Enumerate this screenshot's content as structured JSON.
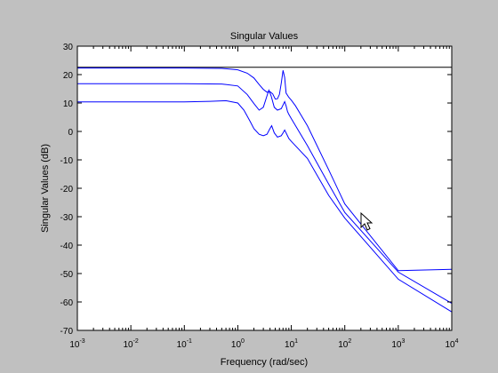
{
  "figure": {
    "background": "#c0c0c0",
    "axes_background": "#ffffff",
    "line_color": "#0000ff"
  },
  "chart_data": {
    "type": "line",
    "title": "Singular Values",
    "xlabel": "Frequency (rad/sec)",
    "ylabel": "Singular Values (dB)",
    "xscale": "log",
    "xlim": [
      0.001,
      10000
    ],
    "ylim": [
      -70,
      30
    ],
    "grid": false,
    "x_ticks": [
      {
        "value": 0.001,
        "base": "10",
        "exp": "-3"
      },
      {
        "value": 0.01,
        "base": "10",
        "exp": "-2"
      },
      {
        "value": 0.1,
        "base": "10",
        "exp": "-1"
      },
      {
        "value": 1,
        "base": "10",
        "exp": "0"
      },
      {
        "value": 10,
        "base": "10",
        "exp": "1"
      },
      {
        "value": 100,
        "base": "10",
        "exp": "2"
      },
      {
        "value": 1000,
        "base": "10",
        "exp": "3"
      },
      {
        "value": 10000,
        "base": "10",
        "exp": "4"
      }
    ],
    "y_ticks": [
      30,
      20,
      10,
      0,
      -10,
      -20,
      -30,
      -40,
      -50,
      -60,
      -70
    ],
    "series": [
      {
        "x": [
          0.001,
          10000
        ],
        "y": [
          22.6,
          22.6
        ]
      },
      {
        "x": [
          0.001,
          0.1,
          0.5,
          1,
          1.5,
          2,
          2.5,
          3,
          3.5,
          4,
          4.5,
          5,
          5.5,
          6,
          6.5,
          7,
          7.5,
          8,
          9,
          10,
          12,
          20,
          50,
          100,
          1000,
          10000
        ],
        "y": [
          22.3,
          22.3,
          22.2,
          21.7,
          20.5,
          18.8,
          16.5,
          14.8,
          13.8,
          14.0,
          13.2,
          11.4,
          11.5,
          13.0,
          17.0,
          21.5,
          19.0,
          13.5,
          12.0,
          11.0,
          9.0,
          2.0,
          -13.5,
          -25.5,
          -49.0,
          -48.5
        ]
      },
      {
        "x": [
          0.001,
          0.1,
          0.5,
          1,
          1.5,
          2,
          2.5,
          3,
          3.5,
          3.8,
          4.2,
          4.8,
          5.5,
          6.5,
          7.5,
          8,
          8.5,
          9,
          10,
          20,
          50,
          100,
          1000,
          10000
        ],
        "y": [
          16.8,
          16.8,
          16.7,
          16.0,
          13.0,
          9.8,
          7.5,
          8.5,
          12.5,
          14.5,
          12.5,
          8.5,
          7.5,
          8.0,
          10.5,
          9.0,
          7.0,
          6.0,
          4.5,
          -5.0,
          -18.5,
          -28.5,
          -49.5,
          -60.5
        ]
      },
      {
        "x": [
          0.001,
          0.1,
          0.3,
          0.6,
          1,
          1.3,
          1.7,
          2,
          2.5,
          3,
          3.5,
          4,
          4.3,
          4.8,
          5.5,
          6.5,
          7,
          7.5,
          8,
          9,
          10,
          20,
          50,
          100,
          1000,
          10000
        ],
        "y": [
          10.4,
          10.4,
          10.6,
          10.8,
          10.0,
          7.5,
          3.5,
          1.0,
          -1.0,
          -1.5,
          -1.0,
          1.0,
          2.0,
          -0.5,
          -2.0,
          -1.5,
          -0.5,
          0.5,
          -0.5,
          -2.5,
          -3.5,
          -9.5,
          -22.5,
          -30.5,
          -52.0,
          -63.5
        ]
      }
    ]
  }
}
